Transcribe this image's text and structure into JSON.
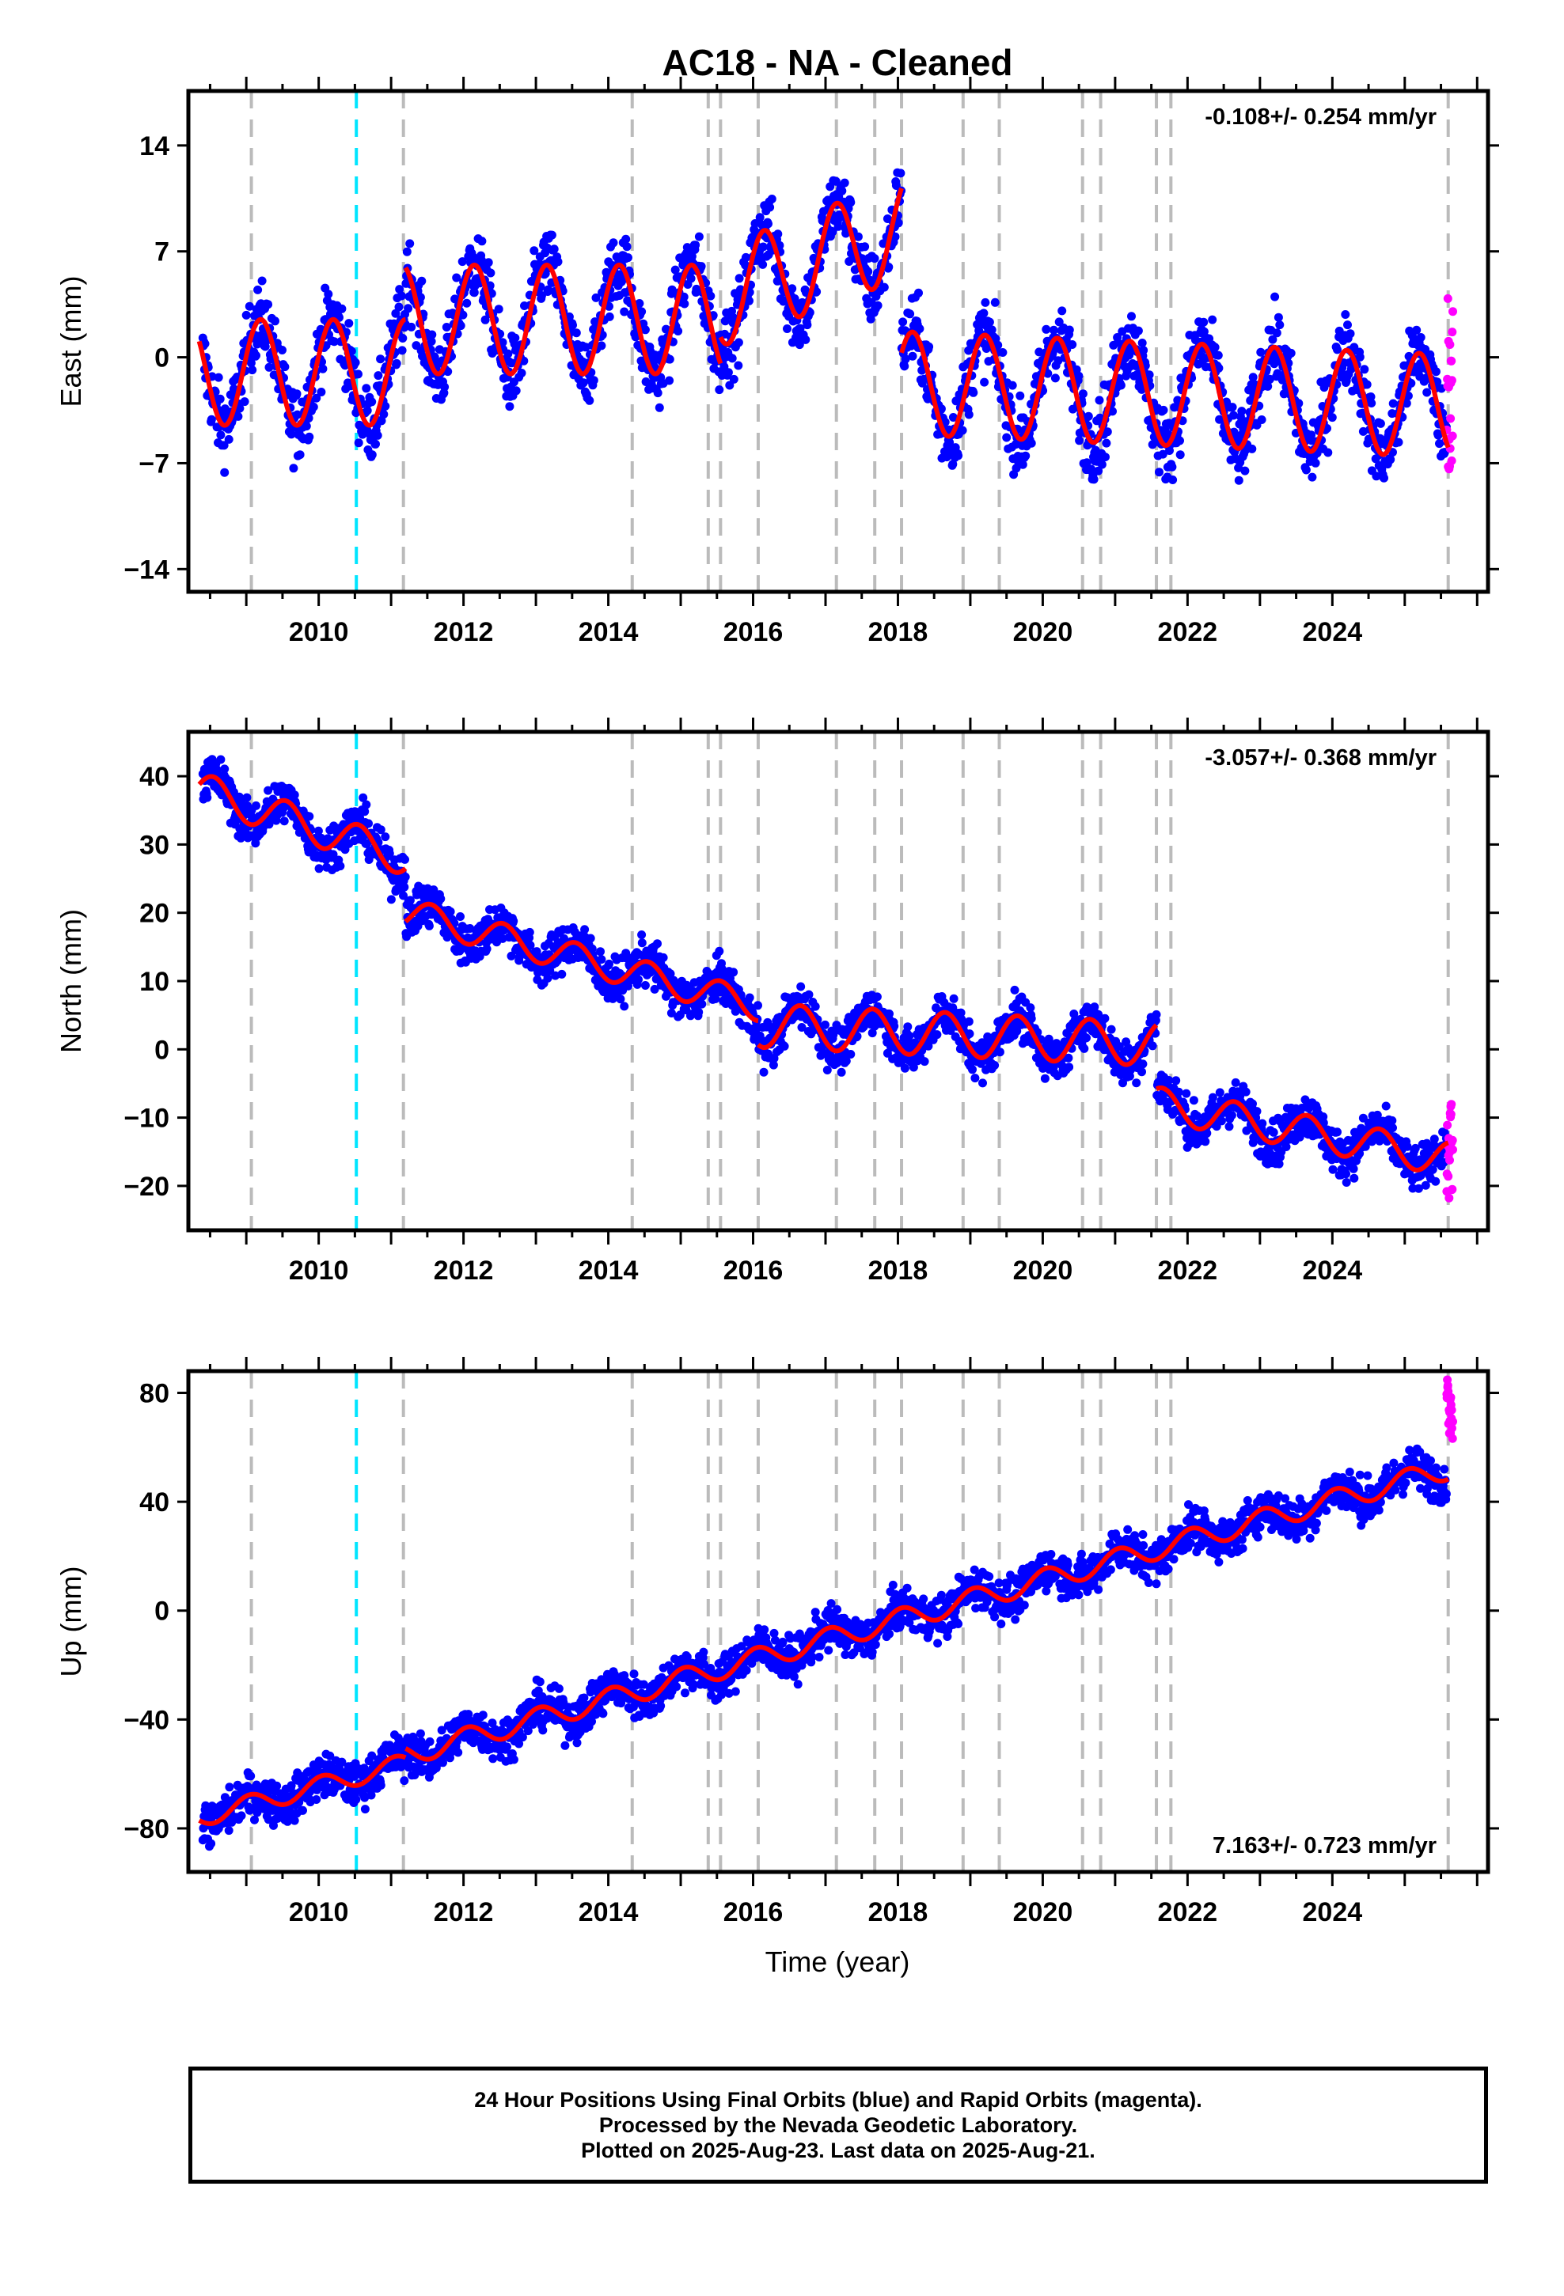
{
  "title": "AC18  - NA - Cleaned",
  "x_axis": {
    "label": "Time (year)",
    "range": [
      2008.2,
      2026.15
    ],
    "ticks": [
      2010,
      2012,
      2014,
      2016,
      2018,
      2020,
      2022,
      2024
    ]
  },
  "equipment_change_lines": [
    2009.07,
    2011.17,
    2014.33,
    2015.38,
    2015.55,
    2016.07,
    2017.15,
    2017.68,
    2018.05,
    2018.9,
    2019.4,
    2020.55,
    2020.8,
    2021.57,
    2021.77,
    2025.6
  ],
  "event_line": 2010.52,
  "colors": {
    "final_orbits": "#0000ff",
    "rapid_orbits": "#ff00ff",
    "model": "#ff0000",
    "dashed": "#bbbbbb",
    "event": "#00e5ff"
  },
  "chart_data": [
    {
      "type": "scatter",
      "ylabel": "East (mm)",
      "ylim": [
        -15.5,
        17.6
      ],
      "yticks": [
        14,
        7,
        0,
        -7,
        -14
      ],
      "rate_text": "-0.108+/- 0.254 mm/yr",
      "rate_position": "top-right",
      "segments": [
        {
          "start": 2008.35,
          "end": 2011.2,
          "base": -1.0,
          "slope": 0.0,
          "amp": 3.5,
          "phase": 2008.95
        },
        {
          "start": 2011.2,
          "end": 2015.55,
          "base": 2.5,
          "slope": 0.0,
          "amp": 3.6,
          "phase": 2008.9
        },
        {
          "start": 2015.55,
          "end": 2018.05,
          "base": 4.0,
          "slope": 1.8,
          "amp": 3.3,
          "phase": 2008.9
        },
        {
          "start": 2018.05,
          "end": 2025.6,
          "base": -1.7,
          "slope": -0.2,
          "amp": 3.4,
          "phase": 2008.95
        }
      ],
      "noise": 1.7,
      "rapid_range": [
        -7.5,
        4.5
      ]
    },
    {
      "type": "scatter",
      "ylabel": "North (mm)",
      "ylim": [
        -26.5,
        46.5
      ],
      "yticks": [
        40,
        30,
        20,
        10,
        0,
        -10,
        -20
      ],
      "rate_text": "-3.057+/- 0.368 mm/yr",
      "rate_position": "top-right",
      "segments": [
        {
          "start": 2008.35,
          "end": 2011.2,
          "base": 38.0,
          "slope": -3.5,
          "amp": 2.6,
          "phase": 2009.3
        },
        {
          "start": 2011.2,
          "end": 2016.07,
          "base": 20.0,
          "slope": -2.8,
          "amp": 2.2,
          "phase": 2009.3
        },
        {
          "start": 2016.07,
          "end": 2021.57,
          "base": 3.5,
          "slope": -0.5,
          "amp": 3.2,
          "phase": 2009.4
        },
        {
          "start": 2021.57,
          "end": 2025.6,
          "base": -8.0,
          "slope": -2.0,
          "amp": 2.5,
          "phase": 2009.4
        }
      ],
      "noise": 2.3,
      "rapid_range": [
        -22,
        -8
      ]
    },
    {
      "type": "scatter",
      "ylabel": "Up (mm)",
      "ylim": [
        -96,
        88
      ],
      "yticks": [
        80,
        40,
        0,
        -40,
        -80
      ],
      "rate_text": "7.163+/- 0.723 mm/yr",
      "rate_position": "bottom-right",
      "segments": [
        {
          "start": 2008.35,
          "end": 2011.2,
          "base": -76.0,
          "slope": 7.0,
          "amp": 3.5,
          "phase": 2008.8
        },
        {
          "start": 2011.2,
          "end": 2025.6,
          "base": -53.0,
          "slope": 7.3,
          "amp": 4.0,
          "phase": 2008.8
        }
      ],
      "noise": 5.5,
      "rapid_range": [
        63,
        86
      ]
    }
  ],
  "footer": {
    "line1": "24 Hour Positions Using Final Orbits (blue) and Rapid Orbits (magenta).",
    "line2": "Processed by the Nevada Geodetic Laboratory.",
    "line3": "Plotted on 2025-Aug-23. Last data on 2025-Aug-21."
  }
}
